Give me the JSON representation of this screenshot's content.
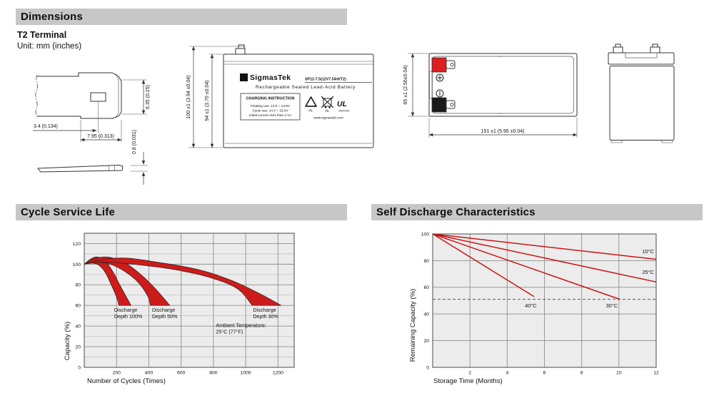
{
  "sections": {
    "dimensions": {
      "title": "Dimensions"
    },
    "cycle_life": {
      "title": "Cycle Service Life"
    },
    "self_discharge": {
      "title": "Self Discharge Characteristics"
    }
  },
  "dimensions": {
    "terminal_type": "T2 Terminal",
    "unit_note": "Unit: mm (inches)",
    "terminal_detail": {
      "hole_offset": "3.4 (0.134)",
      "tab_length": "7.95 (0.313)",
      "tab_width": "6.35 (0.25)",
      "tab_thickness": "0.8 (0.031)"
    },
    "front_view": {
      "total_height": "100 ±1 (3.94 ±0.04)",
      "case_height": "94 ±1 (3.70 ±0.04)"
    },
    "top_view": {
      "depth": "65 ±1 (2.56±0.04)",
      "length": "151 ±1 (5.95 ±0.04)"
    },
    "battery_label": {
      "logo_glyph": "Σ",
      "brand": "SigmasTek",
      "model": "SP12-7.5(12V7.5AH/T2)",
      "type_line": "Rechargeable Sealed Lead-Acid Battery",
      "charging_title": "CHARGING INSTRUCTION",
      "charging_line1": "Floating use: 13.5 ~ 13.8V",
      "charging_line2": "Cycle use: 14.4 ~ 15.0V",
      "charging_line3": "Initial current: less than 2.1A",
      "website": "www.sigmastek.com",
      "pb_recycle": "Pb.",
      "pb_bin": "Pb.",
      "ul_mark": "UL",
      "ul_code": "MH47929"
    },
    "icons": {
      "recycle_pb": "recycle-triangle-icon",
      "crossed_bin": "crossed-out-bin-icon",
      "ul": "ul-certification-icon",
      "positive_terminal": "plus-in-circle",
      "negative_terminal": "minus-in-circle"
    }
  },
  "chart_data": [
    {
      "type": "area",
      "title": "Cycle Service Life",
      "xlabel": "Number of Cycles (Times)",
      "ylabel": "Capacity (%)",
      "xlim": [
        0,
        1300
      ],
      "ylim": [
        0,
        130
      ],
      "xticks": [
        200,
        400,
        600,
        800,
        1000,
        1200
      ],
      "yticks": [
        0,
        20,
        40,
        60,
        80,
        100,
        120
      ],
      "ygrid_step": 10,
      "ygrid_major": 20,
      "grid": true,
      "band_color": "#cd1b1b",
      "bands": [
        {
          "name": "Discharge Depth 100%",
          "upper": [
            [
              0,
              100
            ],
            [
              40,
              105
            ],
            [
              80,
              107
            ],
            [
              130,
              103
            ],
            [
              180,
              92
            ],
            [
              230,
              77
            ],
            [
              290,
              60
            ]
          ],
          "lower": [
            [
              0,
              100
            ],
            [
              50,
              101
            ],
            [
              90,
              99
            ],
            [
              130,
              92
            ],
            [
              170,
              79
            ],
            [
              200,
              68
            ],
            [
              215,
              60
            ]
          ]
        },
        {
          "name": "Discharge Depth 50%",
          "upper": [
            [
              0,
              100
            ],
            [
              60,
              105
            ],
            [
              140,
              107
            ],
            [
              230,
              103
            ],
            [
              320,
              94
            ],
            [
              430,
              78
            ],
            [
              530,
              60
            ]
          ],
          "lower": [
            [
              0,
              100
            ],
            [
              70,
              102
            ],
            [
              160,
              100
            ],
            [
              250,
              93
            ],
            [
              330,
              83
            ],
            [
              390,
              70
            ],
            [
              410,
              60
            ]
          ]
        },
        {
          "name": "Discharge Depth 30%",
          "upper": [
            [
              0,
              100
            ],
            [
              100,
              104
            ],
            [
              250,
              106
            ],
            [
              450,
              102
            ],
            [
              700,
              95
            ],
            [
              900,
              85
            ],
            [
              1080,
              72
            ],
            [
              1220,
              60
            ]
          ],
          "lower": [
            [
              0,
              100
            ],
            [
              120,
              102
            ],
            [
              300,
              100
            ],
            [
              550,
              95
            ],
            [
              780,
              87
            ],
            [
              950,
              76
            ],
            [
              1040,
              60
            ]
          ]
        }
      ],
      "annotations": [
        {
          "lines": [
            "Discharge",
            "Depth 100%"
          ],
          "x": 185,
          "y": 54
        },
        {
          "lines": [
            "Discharge",
            "Depth 50%"
          ],
          "x": 420,
          "y": 54
        },
        {
          "lines": [
            "Discharge",
            "Depth 30%"
          ],
          "x": 1045,
          "y": 54
        },
        {
          "lines": [
            "Ambient Temperature:",
            "25°C (77°F)"
          ],
          "x": 815,
          "y": 39
        }
      ]
    },
    {
      "type": "line",
      "title": "Self Discharge Characteristics",
      "xlabel": "Storage Time (Months)",
      "ylabel": "Remaining Capacity (%)",
      "xlim": [
        0,
        12
      ],
      "ylim": [
        0,
        100
      ],
      "xticks": [
        2,
        4,
        6,
        8,
        10,
        12
      ],
      "yticks": [
        0,
        20,
        40,
        60,
        80,
        100
      ],
      "ygrid_step": 20,
      "ygrid_major": 20,
      "grid": true,
      "line_color": "#cc1414",
      "series": [
        {
          "name": "10°C",
          "points": [
            [
              0,
              100
            ],
            [
              12,
              81
            ]
          ],
          "label_xy": [
            11.25,
            85.5
          ]
        },
        {
          "name": "25°C",
          "points": [
            [
              0,
              100
            ],
            [
              12,
              64
            ]
          ],
          "label_xy": [
            11.25,
            70
          ]
        },
        {
          "name": "30°C",
          "points": [
            [
              0,
              100
            ],
            [
              10.05,
              51
            ]
          ],
          "label_xy": [
            9.3,
            45
          ]
        },
        {
          "name": "40°C",
          "points": [
            [
              0,
              100
            ],
            [
              5.45,
              53
            ]
          ],
          "label_xy": [
            4.95,
            45
          ]
        }
      ],
      "dashed_line_y": 51
    }
  ],
  "colors": {
    "header_bar": "#c7c7c7",
    "accent_red": "#cd1b1b",
    "plot_bg": "#ececec",
    "grid": "#8f8f8f",
    "grid_minor": "#b5b5b5",
    "plot_border": "#4a4a4a",
    "terminal_red": "#dd1f1f",
    "terminal_black": "#1a1a1a"
  }
}
